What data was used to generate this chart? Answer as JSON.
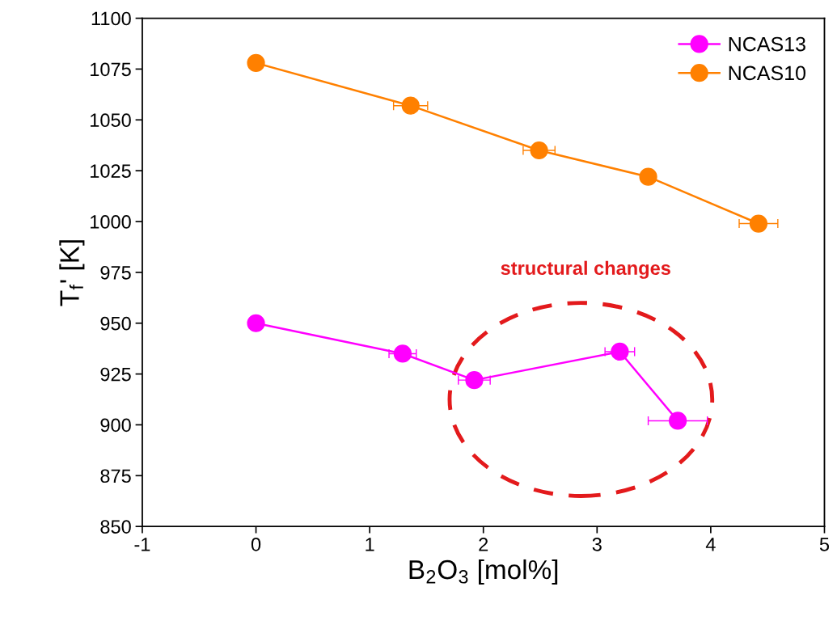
{
  "chart_data": {
    "type": "line",
    "xlabel": "B$_{2}$O$_{3}$ [mol%]",
    "ylabel": "T$_{f}$' [K]",
    "series": [
      {
        "name": "NCAS13",
        "color": "#ff00ff",
        "x": [
          0,
          1.29,
          1.92,
          3.2,
          3.71
        ],
        "values": [
          950,
          935,
          922,
          936,
          902
        ],
        "xerrors": [
          null,
          0.12,
          0.14,
          0.13,
          0.26
        ]
      },
      {
        "name": "NCAS10",
        "color": "#ff8000",
        "x": [
          0,
          1.36,
          2.49,
          3.45,
          4.42
        ],
        "values": [
          1078,
          1057,
          1035,
          1022,
          999
        ],
        "xerrors": [
          null,
          0.15,
          0.14,
          null,
          0.17
        ]
      }
    ],
    "marker": "circle",
    "line_style": "solid",
    "legend": "top right",
    "grid": false,
    "xlim": [
      -1,
      5
    ],
    "xticks": [
      {
        "value": -1,
        "label": "-1"
      },
      0,
      1,
      2,
      3,
      4,
      5
    ],
    "ylim": [
      850,
      1100
    ],
    "yticks": [
      850,
      875,
      900,
      925,
      950,
      975,
      1000,
      1025,
      1050,
      1075,
      1100
    ],
    "annotations": [
      "structural changes"
    ]
  }
}
